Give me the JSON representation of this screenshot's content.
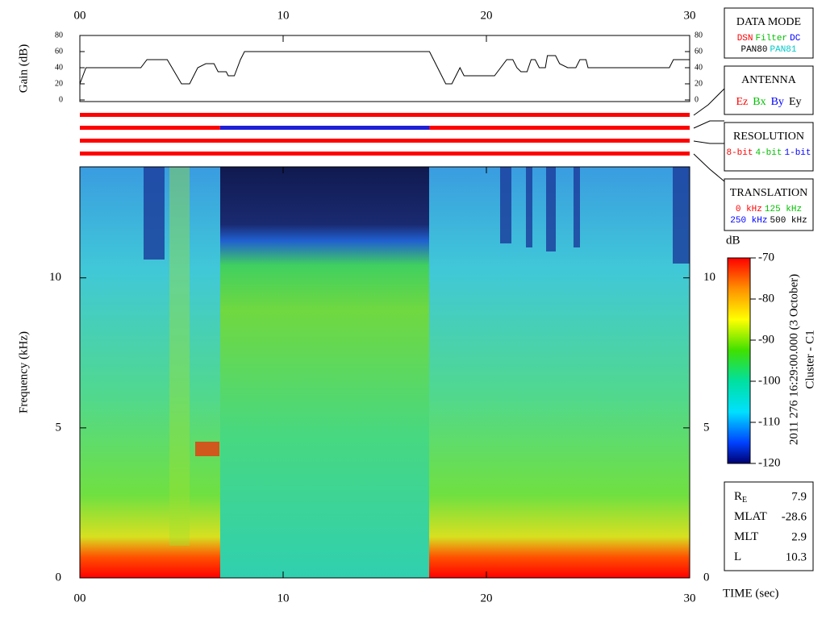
{
  "chart_data": [
    {
      "type": "line",
      "ylabel": "Gain (dB)",
      "color": "#000000",
      "x": [
        0,
        0.3,
        3.0,
        3.3,
        4.3,
        5.0,
        5.4,
        5.8,
        6.2,
        6.6,
        6.8,
        7.2,
        7.3,
        7.6,
        7.9,
        8.1,
        17.2,
        18.0,
        18.3,
        18.7,
        18.9,
        20.4,
        21.0,
        21.3,
        21.5,
        21.7,
        22.0,
        22.2,
        22.4,
        22.6,
        22.9,
        23.0,
        23.4,
        23.6,
        24.0,
        24.4,
        24.6,
        24.9,
        25.0,
        29.0,
        29.2,
        30
      ],
      "values": [
        20,
        40,
        40,
        50,
        50,
        20,
        20,
        40,
        45,
        45,
        35,
        35,
        30,
        30,
        50,
        60,
        60,
        20,
        20,
        40,
        30,
        30,
        50,
        50,
        40,
        35,
        35,
        50,
        50,
        40,
        40,
        55,
        55,
        45,
        40,
        40,
        50,
        50,
        40,
        40,
        50,
        50
      ],
      "xlim": [
        0,
        30
      ],
      "xticks": [
        {
          "value": 0,
          "label": "00"
        },
        10,
        20,
        30
      ],
      "ylim": [
        0,
        80
      ],
      "yticks": [
        0,
        20,
        40,
        60,
        80
      ]
    },
    {
      "type": "status",
      "xlim": [
        0,
        30
      ],
      "bars": [
        {
          "segments": [
            {
              "start": 0,
              "end": 30,
              "color": "#ff0000"
            }
          ]
        },
        {
          "segments": [
            {
              "start": 0,
              "end": 6.9,
              "color": "#ff0000"
            },
            {
              "start": 6.9,
              "end": 17.2,
              "color": "#1f1fd8"
            },
            {
              "start": 17.2,
              "end": 30,
              "color": "#ff0000"
            }
          ]
        },
        {
          "segments": [
            {
              "start": 0,
              "end": 30,
              "color": "#ff0000"
            }
          ]
        },
        {
          "segments": [
            {
              "start": 0,
              "end": 30,
              "color": "#ff0000"
            }
          ]
        }
      ]
    },
    {
      "type": "spectrogram",
      "ylabel": "Frequency (kHz)",
      "xlabel": "TIME (sec)",
      "xlim": [
        0,
        30
      ],
      "xticks": [
        {
          "value": 0,
          "label": "00"
        },
        10,
        20,
        30
      ],
      "ylim": [
        0,
        13.7
      ],
      "yticks": [
        0,
        5,
        10
      ],
      "colorbar": {
        "label": "dB",
        "lim": [
          -120,
          -70
        ],
        "ticks": [
          -70,
          -80,
          -90,
          -100,
          -110,
          -120
        ]
      },
      "annotations": [
        "2011 276 16:29:00.000 (3 October)",
        "Cluster - C1"
      ]
    }
  ],
  "legend_panels": [
    {
      "title": "DATA MODE",
      "rows": [
        [
          {
            "text": "DSN",
            "color": "#ff0000"
          },
          {
            "text": "Filter",
            "color": "#00c000"
          },
          {
            "text": "DC",
            "color": "#0000ff"
          }
        ],
        [
          {
            "text": "PAN80",
            "color": "#000000"
          },
          {
            "text": "PAN81",
            "color": "#00c8c8"
          }
        ]
      ]
    },
    {
      "title": "ANTENNA",
      "rows": [
        [
          {
            "text": "Ez",
            "color": "#ff0000"
          },
          {
            "text": "Bx",
            "color": "#00c000"
          },
          {
            "text": "By",
            "color": "#0000ff"
          },
          {
            "text": "Ey",
            "color": "#000000"
          }
        ]
      ]
    },
    {
      "title": "RESOLUTION",
      "rows": [
        [
          {
            "text": "8-bit",
            "color": "#ff0000"
          },
          {
            "text": "4-bit",
            "color": "#00c000"
          },
          {
            "text": "1-bit",
            "color": "#0000ff"
          }
        ]
      ]
    },
    {
      "title": "TRANSLATION",
      "rows": [
        [
          {
            "text": "0 kHz",
            "color": "#ff0000"
          },
          {
            "text": "125 kHz",
            "color": "#00c000"
          }
        ],
        [
          {
            "text": "250 kHz",
            "color": "#0000ff"
          },
          {
            "text": "500 kHz",
            "color": "#000000"
          }
        ]
      ]
    }
  ],
  "info": [
    {
      "label": "R",
      "sub": "E",
      "value": 7.9
    },
    {
      "label": "MLAT",
      "value": -28.6
    },
    {
      "label": "MLT",
      "value": 2.9
    },
    {
      "label": "L",
      "value": 10.3
    }
  ]
}
